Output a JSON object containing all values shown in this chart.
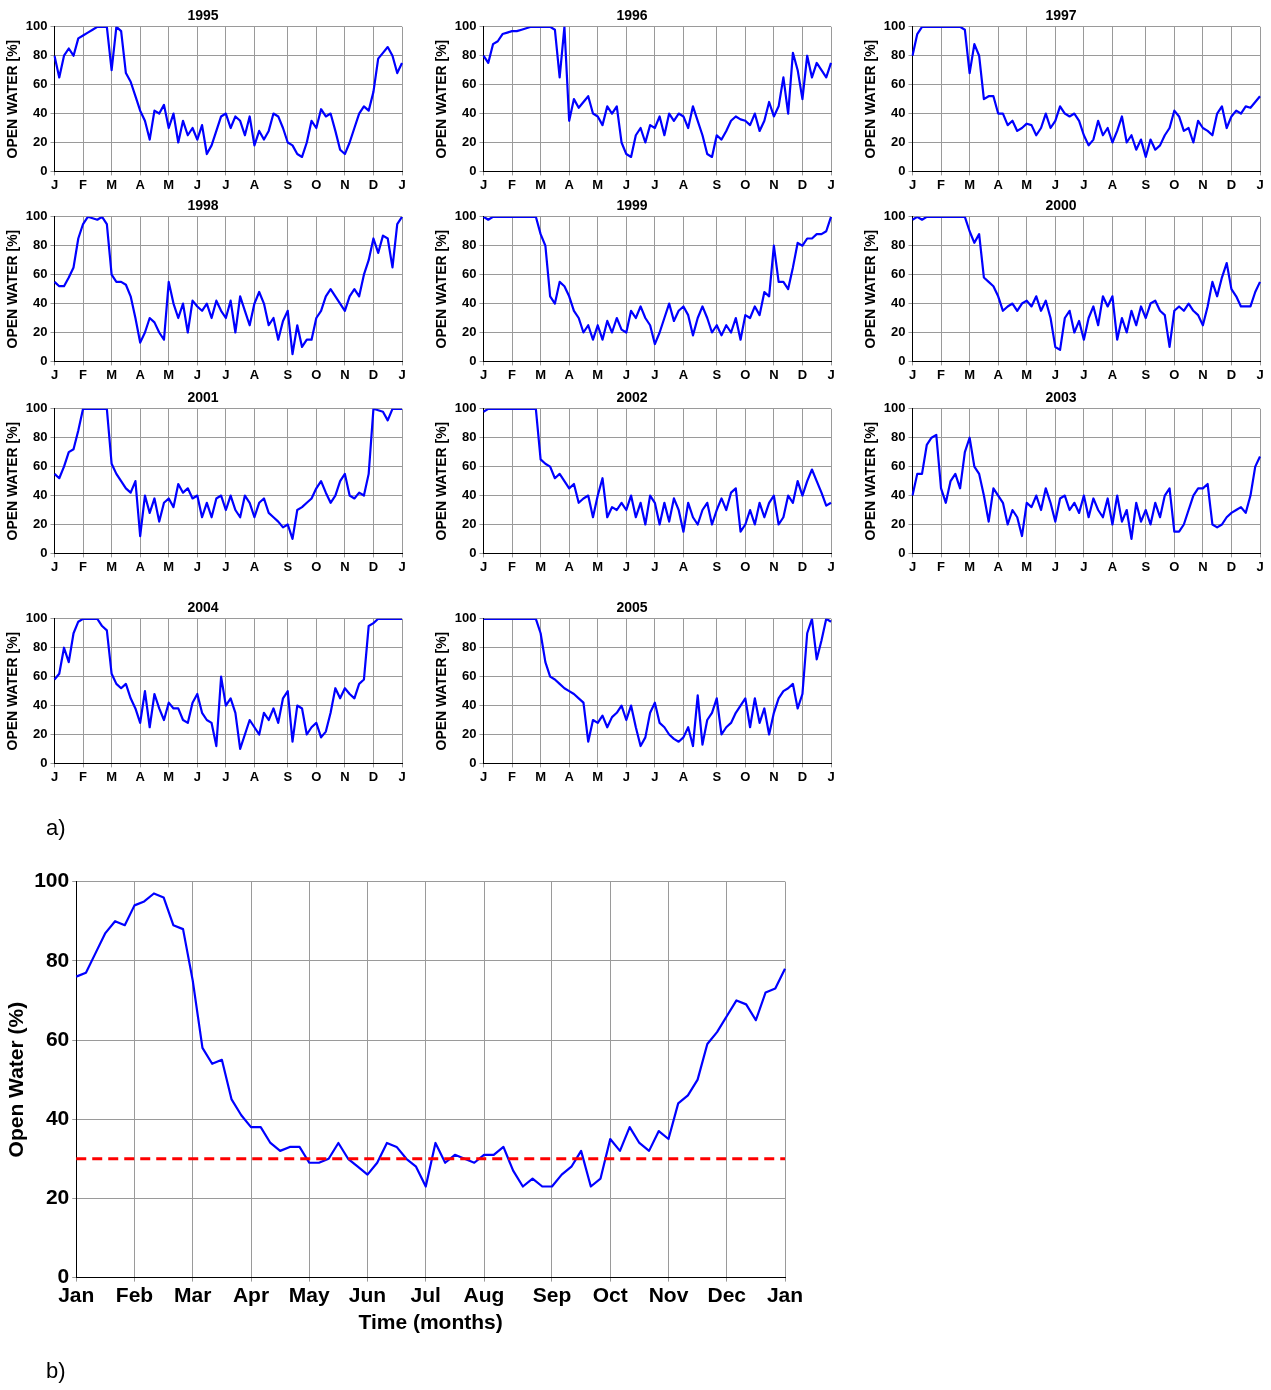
{
  "chart_data": [
    {
      "type": "line",
      "title": "1995",
      "ylabel": "OPEN WATER [%]",
      "categories": [
        "J",
        null,
        null,
        null,
        null,
        null,
        "F",
        null,
        null,
        null,
        null,
        null,
        "M",
        null,
        null,
        null,
        null,
        null,
        "A",
        null,
        null,
        null,
        null,
        null,
        "M",
        null,
        null,
        null,
        null,
        null,
        "J",
        null,
        null,
        null,
        null,
        null,
        "J",
        null,
        null,
        null,
        null,
        null,
        "A",
        null,
        null,
        null,
        null,
        null,
        null,
        "S",
        null,
        null,
        null,
        null,
        null,
        "O",
        null,
        null,
        null,
        null,
        null,
        "N",
        null,
        null,
        null,
        null,
        null,
        "D",
        null,
        null,
        null,
        null,
        null,
        "J"
      ],
      "series": [
        {
          "color": "#0000ff",
          "values": [
            80,
            65,
            80,
            85,
            80,
            92,
            94,
            96,
            98,
            100,
            100,
            100,
            70,
            100,
            97,
            68,
            62,
            52,
            42,
            35,
            22,
            42,
            40,
            46,
            30,
            40,
            20,
            35,
            25,
            30,
            22,
            32,
            12,
            18,
            28,
            38,
            40,
            30,
            38,
            35,
            25,
            38,
            18,
            28,
            22,
            28,
            40,
            38,
            30,
            20,
            18,
            12,
            10,
            20,
            35,
            30,
            43,
            38,
            40,
            28,
            15,
            12,
            20,
            30,
            40,
            45,
            42,
            55,
            78,
            82,
            86,
            80,
            68,
            75
          ]
        }
      ],
      "ylim": [
        0,
        100
      ],
      "yticks": [
        0,
        20,
        40,
        60,
        80,
        100
      ],
      "grid": true
    },
    {
      "type": "line",
      "title": "1996",
      "ylabel": "OPEN WATER [%]",
      "categories": [
        "J",
        null,
        null,
        null,
        null,
        null,
        "F",
        null,
        null,
        null,
        null,
        null,
        "M",
        null,
        null,
        null,
        null,
        null,
        "A",
        null,
        null,
        null,
        null,
        null,
        "M",
        null,
        null,
        null,
        null,
        null,
        "J",
        null,
        null,
        null,
        null,
        null,
        "J",
        null,
        null,
        null,
        null,
        null,
        "A",
        null,
        null,
        null,
        null,
        null,
        null,
        "S",
        null,
        null,
        null,
        null,
        null,
        "O",
        null,
        null,
        null,
        null,
        null,
        "N",
        null,
        null,
        null,
        null,
        null,
        "D",
        null,
        null,
        null,
        null,
        null,
        "J"
      ],
      "series": [
        {
          "color": "#0000ff",
          "values": [
            80,
            75,
            88,
            90,
            95,
            96,
            97,
            97,
            98,
            99,
            100,
            100,
            100,
            100,
            100,
            98,
            65,
            100,
            35,
            50,
            44,
            48,
            52,
            40,
            38,
            32,
            45,
            40,
            45,
            20,
            12,
            10,
            25,
            30,
            20,
            32,
            30,
            38,
            25,
            40,
            35,
            40,
            38,
            30,
            45,
            35,
            25,
            12,
            10,
            25,
            22,
            28,
            35,
            38,
            36,
            35,
            32,
            40,
            28,
            35,
            48,
            38,
            45,
            65,
            40,
            82,
            70,
            50,
            80,
            65,
            75,
            70,
            65,
            75
          ]
        }
      ],
      "ylim": [
        0,
        100
      ],
      "yticks": [
        0,
        20,
        40,
        60,
        80,
        100
      ],
      "grid": true
    },
    {
      "type": "line",
      "title": "1997",
      "ylabel": "OPEN WATER [%]",
      "categories": [
        "J",
        null,
        null,
        null,
        null,
        null,
        "F",
        null,
        null,
        null,
        null,
        null,
        "M",
        null,
        null,
        null,
        null,
        null,
        "A",
        null,
        null,
        null,
        null,
        null,
        "M",
        null,
        null,
        null,
        null,
        null,
        "J",
        null,
        null,
        null,
        null,
        null,
        "J",
        null,
        null,
        null,
        null,
        null,
        "A",
        null,
        null,
        null,
        null,
        null,
        null,
        "S",
        null,
        null,
        null,
        null,
        null,
        "O",
        null,
        null,
        null,
        null,
        null,
        "N",
        null,
        null,
        null,
        null,
        null,
        "D",
        null,
        null,
        null,
        null,
        null,
        "J"
      ],
      "series": [
        {
          "color": "#0000ff",
          "values": [
            80,
            95,
            100,
            100,
            100,
            100,
            100,
            100,
            100,
            100,
            100,
            98,
            68,
            88,
            80,
            50,
            52,
            52,
            40,
            40,
            32,
            35,
            28,
            30,
            33,
            32,
            25,
            30,
            40,
            30,
            35,
            45,
            40,
            38,
            40,
            35,
            25,
            18,
            22,
            35,
            25,
            30,
            20,
            28,
            38,
            20,
            25,
            15,
            22,
            10,
            22,
            15,
            18,
            25,
            30,
            42,
            38,
            28,
            30,
            20,
            35,
            30,
            28,
            25,
            40,
            45,
            30,
            38,
            42,
            40,
            45,
            44,
            48,
            52
          ]
        }
      ],
      "ylim": [
        0,
        100
      ],
      "yticks": [
        0,
        20,
        40,
        60,
        80,
        100
      ],
      "grid": true
    },
    {
      "type": "line",
      "title": "1998",
      "ylabel": "OPEN WATER [%]",
      "categories": [
        "J",
        null,
        null,
        null,
        null,
        null,
        "F",
        null,
        null,
        null,
        null,
        null,
        "M",
        null,
        null,
        null,
        null,
        null,
        "A",
        null,
        null,
        null,
        null,
        null,
        "M",
        null,
        null,
        null,
        null,
        null,
        "J",
        null,
        null,
        null,
        null,
        null,
        "J",
        null,
        null,
        null,
        null,
        null,
        "A",
        null,
        null,
        null,
        null,
        null,
        null,
        "S",
        null,
        null,
        null,
        null,
        null,
        "O",
        null,
        null,
        null,
        null,
        null,
        "N",
        null,
        null,
        null,
        null,
        null,
        "D",
        null,
        null,
        null,
        null,
        null,
        "J"
      ],
      "series": [
        {
          "color": "#0000ff",
          "values": [
            55,
            52,
            52,
            58,
            65,
            85,
            95,
            100,
            99,
            98,
            100,
            95,
            60,
            55,
            55,
            53,
            45,
            30,
            13,
            20,
            30,
            27,
            20,
            15,
            55,
            40,
            30,
            40,
            20,
            42,
            38,
            35,
            40,
            30,
            42,
            35,
            30,
            42,
            20,
            45,
            35,
            25,
            40,
            48,
            40,
            25,
            30,
            15,
            28,
            35,
            5,
            25,
            10,
            15,
            15,
            30,
            35,
            45,
            50,
            45,
            40,
            35,
            45,
            50,
            45,
            60,
            70,
            85,
            75,
            87,
            85,
            65,
            95,
            100
          ]
        }
      ],
      "ylim": [
        0,
        100
      ],
      "yticks": [
        0,
        20,
        40,
        60,
        80,
        100
      ],
      "grid": true
    },
    {
      "type": "line",
      "title": "1999",
      "ylabel": "OPEN WATER [%]",
      "categories": [
        "J",
        null,
        null,
        null,
        null,
        null,
        "F",
        null,
        null,
        null,
        null,
        null,
        "M",
        null,
        null,
        null,
        null,
        null,
        "A",
        null,
        null,
        null,
        null,
        null,
        "M",
        null,
        null,
        null,
        null,
        null,
        "J",
        null,
        null,
        null,
        null,
        null,
        "J",
        null,
        null,
        null,
        null,
        null,
        "A",
        null,
        null,
        null,
        null,
        null,
        null,
        "S",
        null,
        null,
        null,
        null,
        null,
        "O",
        null,
        null,
        null,
        null,
        null,
        "N",
        null,
        null,
        null,
        null,
        null,
        "D",
        null,
        null,
        null,
        null,
        null,
        "J"
      ],
      "series": [
        {
          "color": "#0000ff",
          "values": [
            100,
            98,
            100,
            100,
            100,
            100,
            100,
            100,
            100,
            100,
            100,
            100,
            88,
            80,
            45,
            40,
            55,
            52,
            45,
            35,
            30,
            20,
            25,
            15,
            25,
            15,
            28,
            20,
            30,
            22,
            20,
            35,
            30,
            38,
            30,
            25,
            12,
            20,
            30,
            40,
            28,
            35,
            38,
            32,
            18,
            30,
            38,
            30,
            20,
            25,
            18,
            25,
            20,
            30,
            15,
            32,
            30,
            38,
            32,
            48,
            45,
            80,
            55,
            55,
            50,
            65,
            82,
            80,
            85,
            85,
            88,
            88,
            90,
            100
          ]
        }
      ],
      "ylim": [
        0,
        100
      ],
      "yticks": [
        0,
        20,
        40,
        60,
        80,
        100
      ],
      "grid": true
    },
    {
      "type": "line",
      "title": "2000",
      "ylabel": "OPEN WATER [%]",
      "categories": [
        "J",
        null,
        null,
        null,
        null,
        null,
        "F",
        null,
        null,
        null,
        null,
        null,
        "M",
        null,
        null,
        null,
        null,
        null,
        "A",
        null,
        null,
        null,
        null,
        null,
        "M",
        null,
        null,
        null,
        null,
        null,
        "J",
        null,
        null,
        null,
        null,
        null,
        "J",
        null,
        null,
        null,
        null,
        null,
        "A",
        null,
        null,
        null,
        null,
        null,
        null,
        "S",
        null,
        null,
        null,
        null,
        null,
        "O",
        null,
        null,
        null,
        null,
        null,
        "N",
        null,
        null,
        null,
        null,
        null,
        "D",
        null,
        null,
        null,
        null,
        null,
        "J"
      ],
      "series": [
        {
          "color": "#0000ff",
          "values": [
            98,
            100,
            98,
            100,
            100,
            100,
            100,
            100,
            100,
            100,
            100,
            100,
            90,
            82,
            88,
            58,
            55,
            52,
            45,
            35,
            38,
            40,
            35,
            40,
            42,
            38,
            45,
            35,
            42,
            30,
            10,
            8,
            30,
            35,
            20,
            28,
            15,
            30,
            38,
            25,
            45,
            38,
            45,
            15,
            30,
            20,
            35,
            25,
            38,
            30,
            40,
            42,
            35,
            32,
            10,
            35,
            38,
            35,
            40,
            35,
            32,
            25,
            38,
            55,
            45,
            58,
            68,
            50,
            45,
            38,
            38,
            38,
            48,
            55
          ]
        }
      ],
      "ylim": [
        0,
        100
      ],
      "yticks": [
        0,
        20,
        40,
        60,
        80,
        100
      ],
      "grid": true
    },
    {
      "type": "line",
      "title": "2001",
      "ylabel": "OPEN WATER [%]",
      "categories": [
        "J",
        null,
        null,
        null,
        null,
        null,
        "F",
        null,
        null,
        null,
        null,
        null,
        "M",
        null,
        null,
        null,
        null,
        null,
        "A",
        null,
        null,
        null,
        null,
        null,
        "M",
        null,
        null,
        null,
        null,
        null,
        "J",
        null,
        null,
        null,
        null,
        null,
        "J",
        null,
        null,
        null,
        null,
        null,
        "A",
        null,
        null,
        null,
        null,
        null,
        null,
        "S",
        null,
        null,
        null,
        null,
        null,
        "O",
        null,
        null,
        null,
        null,
        null,
        "N",
        null,
        null,
        null,
        null,
        null,
        "D",
        null,
        null,
        null,
        null,
        null,
        "J"
      ],
      "series": [
        {
          "color": "#0000ff",
          "values": [
            55,
            52,
            60,
            70,
            72,
            85,
            100,
            100,
            100,
            100,
            100,
            100,
            62,
            55,
            50,
            45,
            42,
            50,
            12,
            40,
            28,
            38,
            22,
            35,
            38,
            32,
            48,
            42,
            45,
            38,
            40,
            25,
            35,
            25,
            38,
            40,
            30,
            40,
            30,
            25,
            40,
            35,
            25,
            35,
            38,
            28,
            25,
            22,
            18,
            20,
            10,
            30,
            32,
            35,
            38,
            45,
            50,
            42,
            35,
            40,
            50,
            55,
            40,
            38,
            42,
            40,
            55,
            100,
            99,
            98,
            92,
            100,
            100,
            100
          ]
        }
      ],
      "ylim": [
        0,
        100
      ],
      "yticks": [
        0,
        20,
        40,
        60,
        80,
        100
      ],
      "grid": true
    },
    {
      "type": "line",
      "title": "2002",
      "ylabel": "OPEN WATER [%]",
      "categories": [
        "J",
        null,
        null,
        null,
        null,
        null,
        "F",
        null,
        null,
        null,
        null,
        null,
        "M",
        null,
        null,
        null,
        null,
        null,
        "A",
        null,
        null,
        null,
        null,
        null,
        "M",
        null,
        null,
        null,
        null,
        null,
        "J",
        null,
        null,
        null,
        null,
        null,
        "J",
        null,
        null,
        null,
        null,
        null,
        "A",
        null,
        null,
        null,
        null,
        null,
        null,
        "S",
        null,
        null,
        null,
        null,
        null,
        "O",
        null,
        null,
        null,
        null,
        null,
        "N",
        null,
        null,
        null,
        null,
        null,
        "D",
        null,
        null,
        null,
        null,
        null,
        "J"
      ],
      "series": [
        {
          "color": "#0000ff",
          "values": [
            98,
            100,
            100,
            100,
            100,
            100,
            100,
            100,
            100,
            100,
            100,
            100,
            65,
            62,
            60,
            52,
            55,
            50,
            45,
            48,
            35,
            38,
            40,
            25,
            40,
            52,
            25,
            32,
            30,
            35,
            30,
            40,
            25,
            35,
            20,
            40,
            35,
            20,
            35,
            22,
            38,
            30,
            15,
            35,
            25,
            20,
            30,
            35,
            20,
            30,
            38,
            30,
            42,
            45,
            15,
            20,
            30,
            20,
            35,
            25,
            35,
            40,
            20,
            25,
            40,
            35,
            50,
            40,
            50,
            58,
            50,
            42,
            33,
            35
          ]
        }
      ],
      "ylim": [
        0,
        100
      ],
      "yticks": [
        0,
        20,
        40,
        60,
        80,
        100
      ],
      "grid": true
    },
    {
      "type": "line",
      "title": "2003",
      "ylabel": "OPEN WATER [%]",
      "categories": [
        "J",
        null,
        null,
        null,
        null,
        null,
        "F",
        null,
        null,
        null,
        null,
        null,
        "M",
        null,
        null,
        null,
        null,
        null,
        "A",
        null,
        null,
        null,
        null,
        null,
        "M",
        null,
        null,
        null,
        null,
        null,
        "J",
        null,
        null,
        null,
        null,
        null,
        "J",
        null,
        null,
        null,
        null,
        null,
        "A",
        null,
        null,
        null,
        null,
        null,
        null,
        "S",
        null,
        null,
        null,
        null,
        null,
        "O",
        null,
        null,
        null,
        null,
        null,
        "N",
        null,
        null,
        null,
        null,
        null,
        "D",
        null,
        null,
        null,
        null,
        null,
        "J"
      ],
      "series": [
        {
          "color": "#0000ff",
          "values": [
            40,
            55,
            55,
            75,
            80,
            82,
            45,
            35,
            50,
            55,
            45,
            70,
            80,
            60,
            55,
            40,
            22,
            45,
            40,
            35,
            20,
            30,
            25,
            12,
            35,
            32,
            40,
            30,
            45,
            35,
            22,
            38,
            40,
            30,
            35,
            28,
            40,
            25,
            38,
            30,
            25,
            38,
            20,
            40,
            22,
            30,
            10,
            35,
            22,
            30,
            20,
            35,
            25,
            40,
            45,
            15,
            15,
            20,
            30,
            40,
            45,
            45,
            48,
            20,
            18,
            20,
            25,
            28,
            30,
            32,
            28,
            40,
            60,
            67
          ]
        }
      ],
      "ylim": [
        0,
        100
      ],
      "yticks": [
        0,
        20,
        40,
        60,
        80,
        100
      ],
      "grid": true
    },
    {
      "type": "line",
      "title": "2004",
      "ylabel": "OPEN WATER [%]",
      "annotations": [
        "a)"
      ],
      "categories": [
        "J",
        null,
        null,
        null,
        null,
        null,
        "F",
        null,
        null,
        null,
        null,
        null,
        "M",
        null,
        null,
        null,
        null,
        null,
        "A",
        null,
        null,
        null,
        null,
        null,
        "M",
        null,
        null,
        null,
        null,
        null,
        "J",
        null,
        null,
        null,
        null,
        null,
        "J",
        null,
        null,
        null,
        null,
        null,
        "A",
        null,
        null,
        null,
        null,
        null,
        null,
        "S",
        null,
        null,
        null,
        null,
        null,
        "O",
        null,
        null,
        null,
        null,
        null,
        "N",
        null,
        null,
        null,
        null,
        null,
        "D",
        null,
        null,
        null,
        null,
        null,
        "J"
      ],
      "series": [
        {
          "color": "#0000ff",
          "values": [
            58,
            62,
            80,
            70,
            90,
            98,
            100,
            100,
            100,
            100,
            95,
            92,
            62,
            55,
            52,
            55,
            45,
            38,
            28,
            50,
            25,
            48,
            38,
            30,
            42,
            38,
            38,
            30,
            28,
            42,
            48,
            35,
            30,
            28,
            12,
            60,
            40,
            45,
            35,
            10,
            20,
            30,
            25,
            20,
            35,
            30,
            38,
            28,
            45,
            50,
            15,
            40,
            38,
            20,
            25,
            28,
            18,
            22,
            35,
            52,
            45,
            52,
            48,
            45,
            55,
            58,
            95,
            97,
            100,
            100,
            100,
            100,
            100,
            100
          ]
        }
      ],
      "ylim": [
        0,
        100
      ],
      "yticks": [
        0,
        20,
        40,
        60,
        80,
        100
      ],
      "grid": true
    },
    {
      "type": "line",
      "title": "2005",
      "ylabel": "OPEN WATER [%]",
      "categories": [
        "J",
        null,
        null,
        null,
        null,
        null,
        "F",
        null,
        null,
        null,
        null,
        null,
        "M",
        null,
        null,
        null,
        null,
        null,
        "A",
        null,
        null,
        null,
        null,
        null,
        "M",
        null,
        null,
        null,
        null,
        null,
        "J",
        null,
        null,
        null,
        null,
        null,
        "J",
        null,
        null,
        null,
        null,
        null,
        "A",
        null,
        null,
        null,
        null,
        null,
        null,
        "S",
        null,
        null,
        null,
        null,
        null,
        "O",
        null,
        null,
        null,
        null,
        null,
        "N",
        null,
        null,
        null,
        null,
        null,
        "D",
        null,
        null,
        null,
        null,
        null,
        "J"
      ],
      "series": [
        {
          "color": "#0000ff",
          "values": [
            100,
            100,
            100,
            100,
            100,
            100,
            100,
            100,
            100,
            100,
            100,
            100,
            90,
            70,
            60,
            58,
            55,
            52,
            50,
            48,
            45,
            42,
            15,
            30,
            28,
            33,
            25,
            32,
            35,
            40,
            30,
            40,
            25,
            12,
            18,
            35,
            42,
            28,
            25,
            20,
            17,
            15,
            18,
            25,
            12,
            47,
            13,
            30,
            35,
            45,
            20,
            25,
            28,
            35,
            40,
            45,
            25,
            45,
            28,
            38,
            20,
            35,
            45,
            50,
            52,
            55,
            38,
            48,
            90,
            100,
            72,
            85,
            100,
            98
          ]
        }
      ],
      "ylim": [
        0,
        100
      ],
      "yticks": [
        0,
        20,
        40,
        60,
        80,
        100
      ],
      "grid": true
    },
    {
      "type": "line",
      "xlabel": "Time (months)",
      "ylabel": "Open Water (%)",
      "annotations": [
        "b)"
      ],
      "categories": [
        "Jan",
        null,
        null,
        null,
        null,
        null,
        "Feb",
        null,
        null,
        null,
        null,
        null,
        "Mar",
        null,
        null,
        null,
        null,
        null,
        "Apr",
        null,
        null,
        null,
        null,
        null,
        "May",
        null,
        null,
        null,
        null,
        null,
        "Jun",
        null,
        null,
        null,
        null,
        null,
        "Jul",
        null,
        null,
        null,
        null,
        null,
        "Aug",
        null,
        null,
        null,
        null,
        null,
        null,
        "Sep",
        null,
        null,
        null,
        null,
        null,
        "Oct",
        null,
        null,
        null,
        null,
        null,
        "Nov",
        null,
        null,
        null,
        null,
        null,
        "Dec",
        null,
        null,
        null,
        null,
        null,
        "Jan"
      ],
      "series": [
        {
          "color": "#0000ff",
          "values": [
            76,
            77,
            82,
            87,
            90,
            89,
            94,
            95,
            97,
            96,
            89,
            88,
            75,
            58,
            54,
            55,
            45,
            41,
            38,
            38,
            34,
            32,
            33,
            33,
            29,
            29,
            30,
            34,
            30,
            28,
            26,
            29,
            34,
            33,
            30,
            28,
            23,
            34,
            29,
            31,
            30,
            29,
            31,
            31,
            33,
            27,
            23,
            25,
            23,
            23,
            26,
            28,
            32,
            23,
            25,
            35,
            32,
            38,
            34,
            32,
            37,
            35,
            44,
            46,
            50,
            59,
            62,
            66,
            70,
            69,
            65,
            72,
            73,
            78
          ]
        }
      ],
      "ref_lines": [
        {
          "axis": "y",
          "value": 30,
          "color": "#ff0000",
          "line_style": "dashed"
        }
      ],
      "ylim": [
        0,
        100
      ],
      "yticks": [
        0,
        20,
        40,
        60,
        80,
        100
      ],
      "grid": true
    }
  ]
}
